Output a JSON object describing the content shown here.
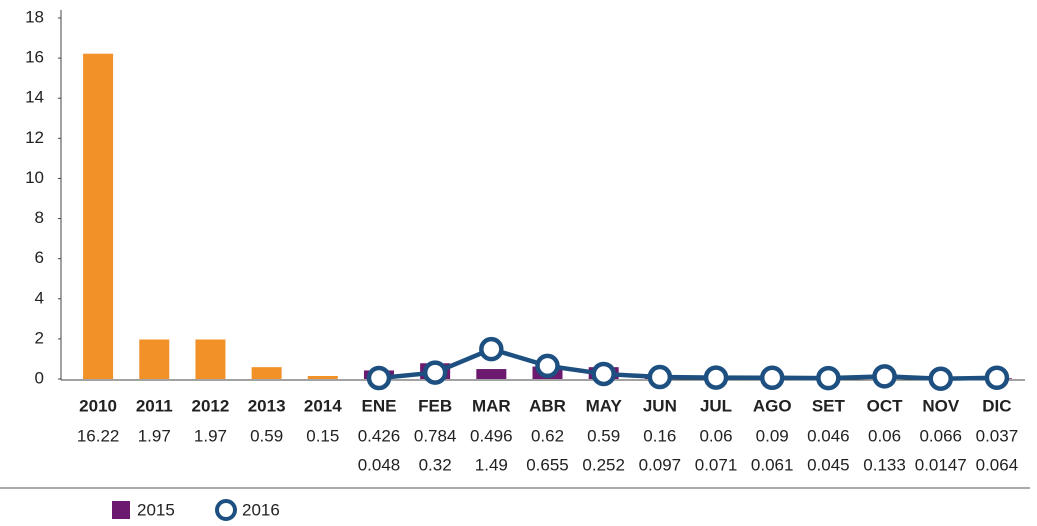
{
  "chart_data": {
    "type": "bar",
    "categories": [
      "2010",
      "2011",
      "2012",
      "2013",
      "2014",
      "ENE",
      "FEB",
      "MAR",
      "ABR",
      "MAY",
      "JUN",
      "JUL",
      "AGO",
      "SET",
      "OCT",
      "NOV",
      "DIC"
    ],
    "series": [
      {
        "type": "bar",
        "color": "#f39129",
        "values": [
          16.22,
          1.97,
          1.97,
          0.59,
          0.15,
          null,
          null,
          null,
          null,
          null,
          null,
          null,
          null,
          null,
          null,
          null,
          null
        ]
      },
      {
        "type": "bar",
        "name": "2015",
        "color": "#6b1a6f",
        "values": [
          null,
          null,
          null,
          null,
          null,
          0.426,
          0.784,
          0.496,
          0.62,
          0.59,
          0.16,
          0.06,
          0.09,
          0.046,
          0.06,
          0.066,
          0.037
        ]
      },
      {
        "type": "line",
        "name": "2016",
        "color": "#1d5080",
        "values": [
          null,
          null,
          null,
          null,
          null,
          0.048,
          0.32,
          1.49,
          0.655,
          0.252,
          0.097,
          0.071,
          0.061,
          0.045,
          0.133,
          0.0147,
          0.064
        ]
      }
    ],
    "ylim": [
      0,
      18
    ],
    "yticks": [
      0,
      2,
      4,
      6,
      8,
      10,
      12,
      14,
      16,
      18
    ],
    "grid": false,
    "legend": "bottom-left"
  }
}
